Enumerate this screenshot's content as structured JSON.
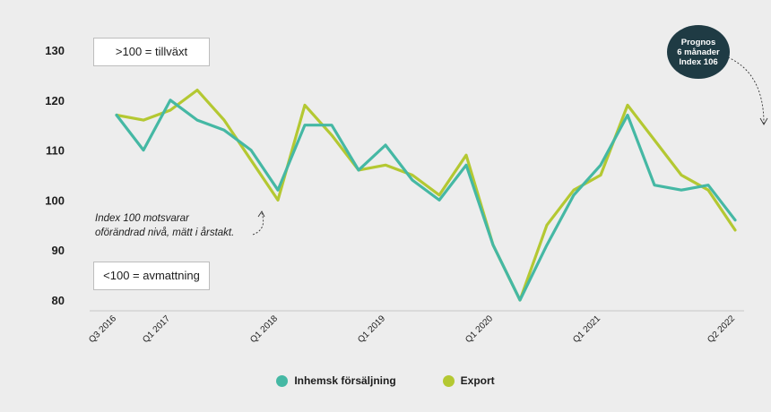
{
  "chart_data": {
    "type": "line",
    "ylim": [
      80,
      130
    ],
    "yticks": [
      80,
      90,
      100,
      110,
      120,
      130
    ],
    "x_labels": [
      {
        "index": 0,
        "label": "Q3 2016"
      },
      {
        "index": 2,
        "label": "Q1 2017"
      },
      {
        "index": 6,
        "label": "Q1 2018"
      },
      {
        "index": 10,
        "label": "Q1 2019"
      },
      {
        "index": 14,
        "label": "Q1 2020"
      },
      {
        "index": 18,
        "label": "Q1 2021"
      },
      {
        "index": 23,
        "label": "Q2 2022"
      }
    ],
    "series": [
      {
        "name": "Inhemsk försäljning",
        "color": "#45b8a4",
        "values": [
          117,
          110,
          120,
          116,
          114,
          110,
          102,
          115,
          115,
          106,
          111,
          104,
          100,
          107,
          91,
          80,
          91,
          101,
          107,
          117,
          103,
          102,
          103,
          96
        ]
      },
      {
        "name": "Export",
        "color": "#b4c832",
        "values": [
          117,
          116,
          118,
          122,
          116,
          108,
          100,
          119,
          113,
          106,
          107,
          105,
          101,
          109,
          91,
          80,
          95,
          102,
          105,
          119,
          112,
          105,
          102,
          94
        ]
      }
    ],
    "annotations": {
      "growth": ">100 = tillväxt",
      "slowdown": "<100 = avmattning",
      "note_line1": "Index 100 motsvarar",
      "note_line2": "oförändrad nivå, mätt i årstakt.",
      "forecast_line1": "Prognos",
      "forecast_line2": "6 månader",
      "forecast_line3": "Index 106"
    }
  }
}
